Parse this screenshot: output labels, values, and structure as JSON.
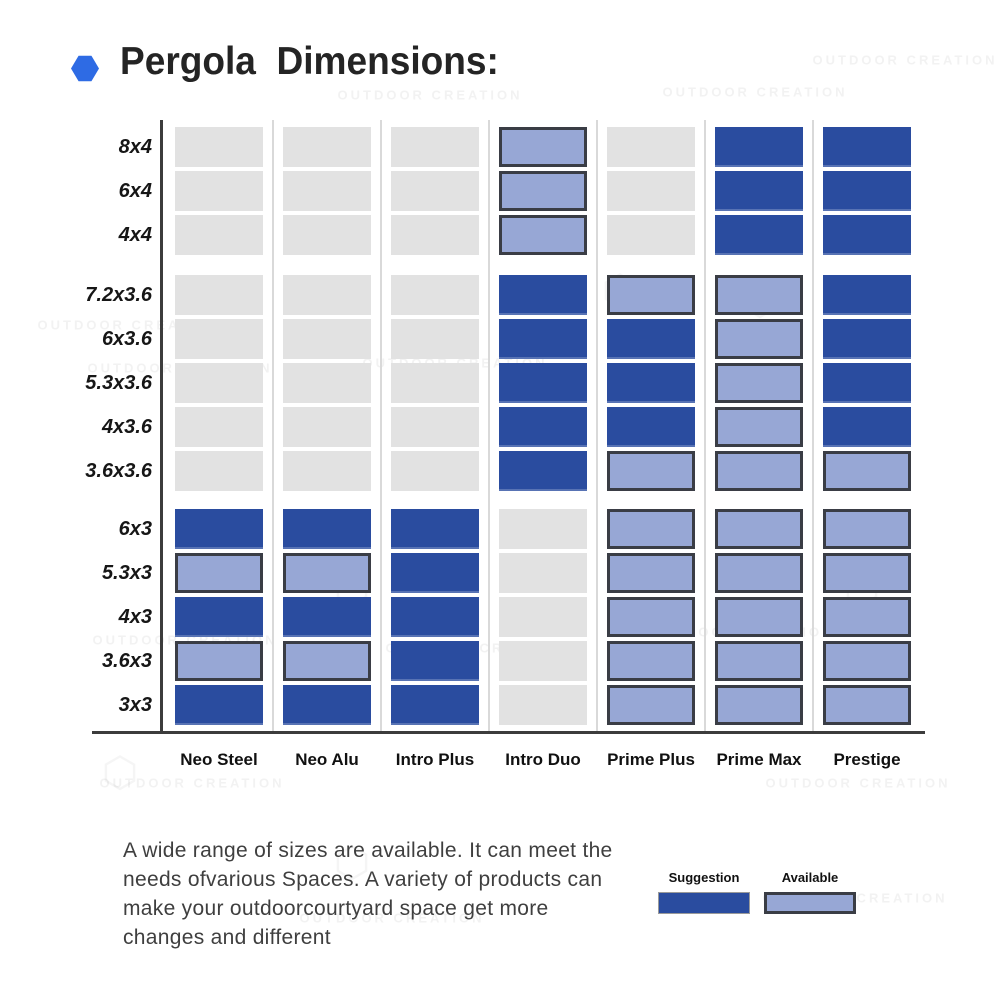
{
  "header": {
    "title": "Pergola  Dimensions:",
    "accent_color": "#2e6be4"
  },
  "watermark": {
    "text": "OUTDOOR CREATION"
  },
  "description": "A wide range of sizes are available. It can meet the needs ofvarious Spaces. A variety of products can make your outdoorcourtyard space get more changes and different",
  "legend": {
    "items": [
      {
        "label": "Suggestion",
        "state": "suggestion"
      },
      {
        "label": "Available",
        "state": "available"
      }
    ]
  },
  "chart_data": {
    "type": "heatmap",
    "title": "Pergola  Dimensions:",
    "columns": [
      "Neo Steel",
      "Neo Alu",
      "Intro Plus",
      "Intro Duo",
      "Prime Plus",
      "Prime Max",
      "Prestige"
    ],
    "colors": {
      "suggestion": "#2a4c9f",
      "available": "#97a7d5",
      "available_border": "#3a3d45",
      "none": "#e2e2e2"
    },
    "legend_position": "bottom-right",
    "rows": [
      {
        "label": "8x4",
        "group": 0,
        "cells": [
          "none",
          "none",
          "none",
          "available",
          "none",
          "suggestion",
          "suggestion"
        ]
      },
      {
        "label": "6x4",
        "group": 0,
        "cells": [
          "none",
          "none",
          "none",
          "available",
          "none",
          "suggestion",
          "suggestion"
        ]
      },
      {
        "label": "4x4",
        "group": 0,
        "cells": [
          "none",
          "none",
          "none",
          "available",
          "none",
          "suggestion",
          "suggestion"
        ]
      },
      {
        "label": "7.2x3.6",
        "group": 1,
        "cells": [
          "none",
          "none",
          "none",
          "suggestion",
          "available",
          "available",
          "suggestion"
        ]
      },
      {
        "label": "6x3.6",
        "group": 1,
        "cells": [
          "none",
          "none",
          "none",
          "suggestion",
          "suggestion",
          "available",
          "suggestion"
        ]
      },
      {
        "label": "5.3x3.6",
        "group": 1,
        "cells": [
          "none",
          "none",
          "none",
          "suggestion",
          "suggestion",
          "available",
          "suggestion"
        ]
      },
      {
        "label": "4x3.6",
        "group": 1,
        "cells": [
          "none",
          "none",
          "none",
          "suggestion",
          "suggestion",
          "available",
          "suggestion"
        ]
      },
      {
        "label": "3.6x3.6",
        "group": 1,
        "cells": [
          "none",
          "none",
          "none",
          "suggestion",
          "available",
          "available",
          "available"
        ]
      },
      {
        "label": "6x3",
        "group": 2,
        "cells": [
          "suggestion",
          "suggestion",
          "suggestion",
          "none",
          "available",
          "available",
          "available"
        ]
      },
      {
        "label": "5.3x3",
        "group": 2,
        "cells": [
          "available",
          "available",
          "suggestion",
          "none",
          "available",
          "available",
          "available"
        ]
      },
      {
        "label": "4x3",
        "group": 2,
        "cells": [
          "suggestion",
          "suggestion",
          "suggestion",
          "none",
          "available",
          "available",
          "available"
        ]
      },
      {
        "label": "3.6x3",
        "group": 2,
        "cells": [
          "available",
          "available",
          "suggestion",
          "none",
          "available",
          "available",
          "available"
        ]
      },
      {
        "label": "3x3",
        "group": 2,
        "cells": [
          "suggestion",
          "suggestion",
          "suggestion",
          "none",
          "available",
          "available",
          "available"
        ]
      }
    ]
  }
}
